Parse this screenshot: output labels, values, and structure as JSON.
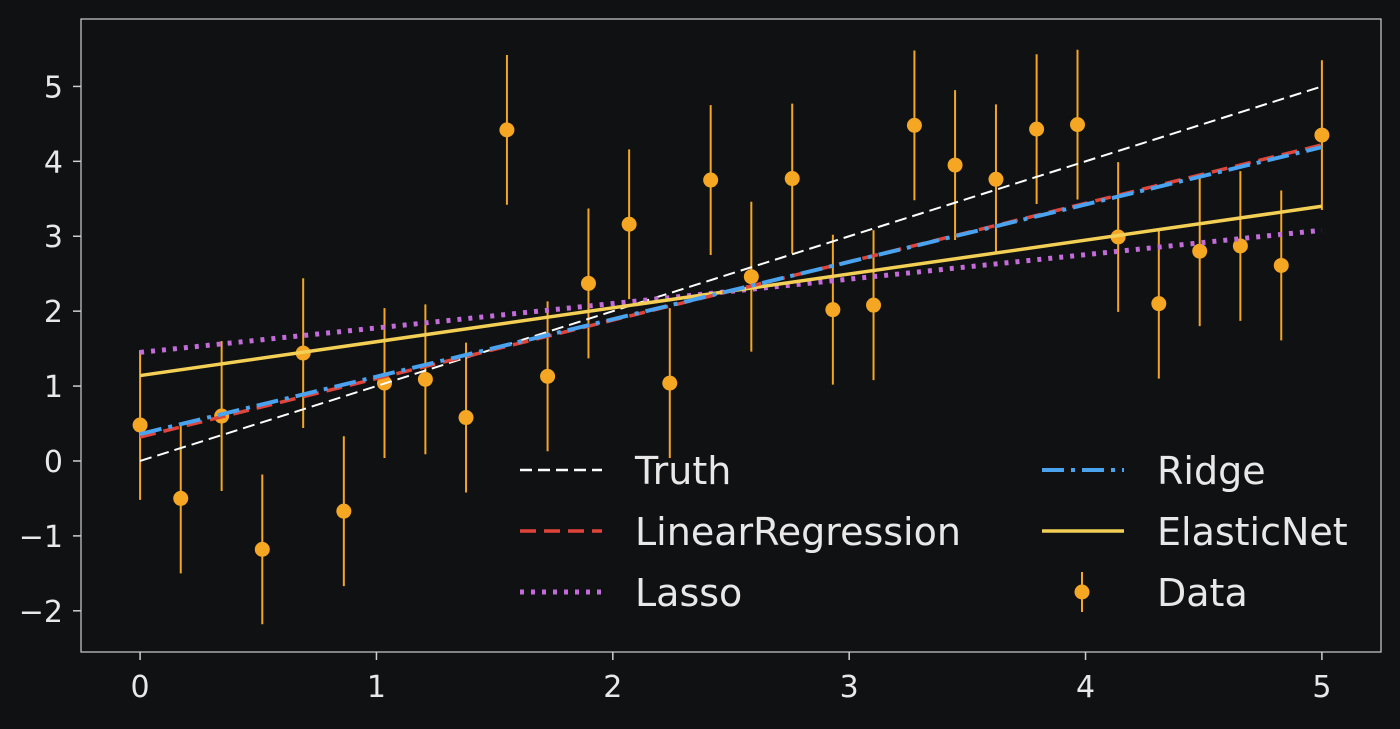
{
  "chart_data": {
    "type": "line",
    "title": "",
    "xlabel": "",
    "ylabel": "",
    "xlim": [
      -0.25,
      5.25
    ],
    "ylim": [
      -2.55,
      5.9
    ],
    "x_ticks": [
      0,
      1,
      2,
      3,
      4,
      5
    ],
    "y_ticks": [
      -2,
      -1,
      0,
      1,
      2,
      3,
      4,
      5
    ],
    "x_tick_labels": [
      "0",
      "1",
      "2",
      "3",
      "4",
      "5"
    ],
    "y_tick_labels": [
      "−2",
      "−1",
      "0",
      "1",
      "2",
      "3",
      "4",
      "5"
    ],
    "grid": false,
    "legend_placement": "lower-right",
    "series": [
      {
        "name": "Truth",
        "kind": "line",
        "style": "dashed",
        "color": "#ffffff",
        "x": [
          0,
          5
        ],
        "y": [
          0.0,
          5.0
        ]
      },
      {
        "name": "LinearRegression",
        "kind": "line",
        "style": "dashed",
        "color": "#e0443a",
        "x": [
          0,
          5
        ],
        "y": [
          0.32,
          4.22
        ]
      },
      {
        "name": "Lasso",
        "kind": "line",
        "style": "dotted",
        "color": "#c26bd9",
        "x": [
          0,
          5
        ],
        "y": [
          1.45,
          3.08
        ]
      },
      {
        "name": "Ridge",
        "kind": "line",
        "style": "dashdot",
        "color": "#4aa3ee",
        "x": [
          0,
          5
        ],
        "y": [
          0.36,
          4.19
        ]
      },
      {
        "name": "ElasticNet",
        "kind": "line",
        "style": "solid",
        "color": "#f3cf55",
        "x": [
          0,
          5
        ],
        "y": [
          1.14,
          3.4
        ]
      },
      {
        "name": "Data",
        "kind": "errorbar",
        "color": "#f5a623",
        "yerr": 1.0,
        "x": [
          0.0,
          0.172,
          0.345,
          0.517,
          0.69,
          0.862,
          1.034,
          1.207,
          1.379,
          1.552,
          1.724,
          1.897,
          2.069,
          2.241,
          2.414,
          2.586,
          2.759,
          2.931,
          3.103,
          3.276,
          3.448,
          3.621,
          3.793,
          3.966,
          4.138,
          4.31,
          4.483,
          4.655,
          4.828,
          5.0
        ],
        "y": [
          0.48,
          -0.5,
          0.6,
          -1.18,
          1.44,
          -0.67,
          1.04,
          1.09,
          0.58,
          4.42,
          1.13,
          2.37,
          3.16,
          1.04,
          3.75,
          2.46,
          3.77,
          2.02,
          2.08,
          4.48,
          3.95,
          3.76,
          4.43,
          4.49,
          2.99,
          2.1,
          2.8,
          2.87,
          2.61,
          4.35
        ]
      }
    ]
  }
}
